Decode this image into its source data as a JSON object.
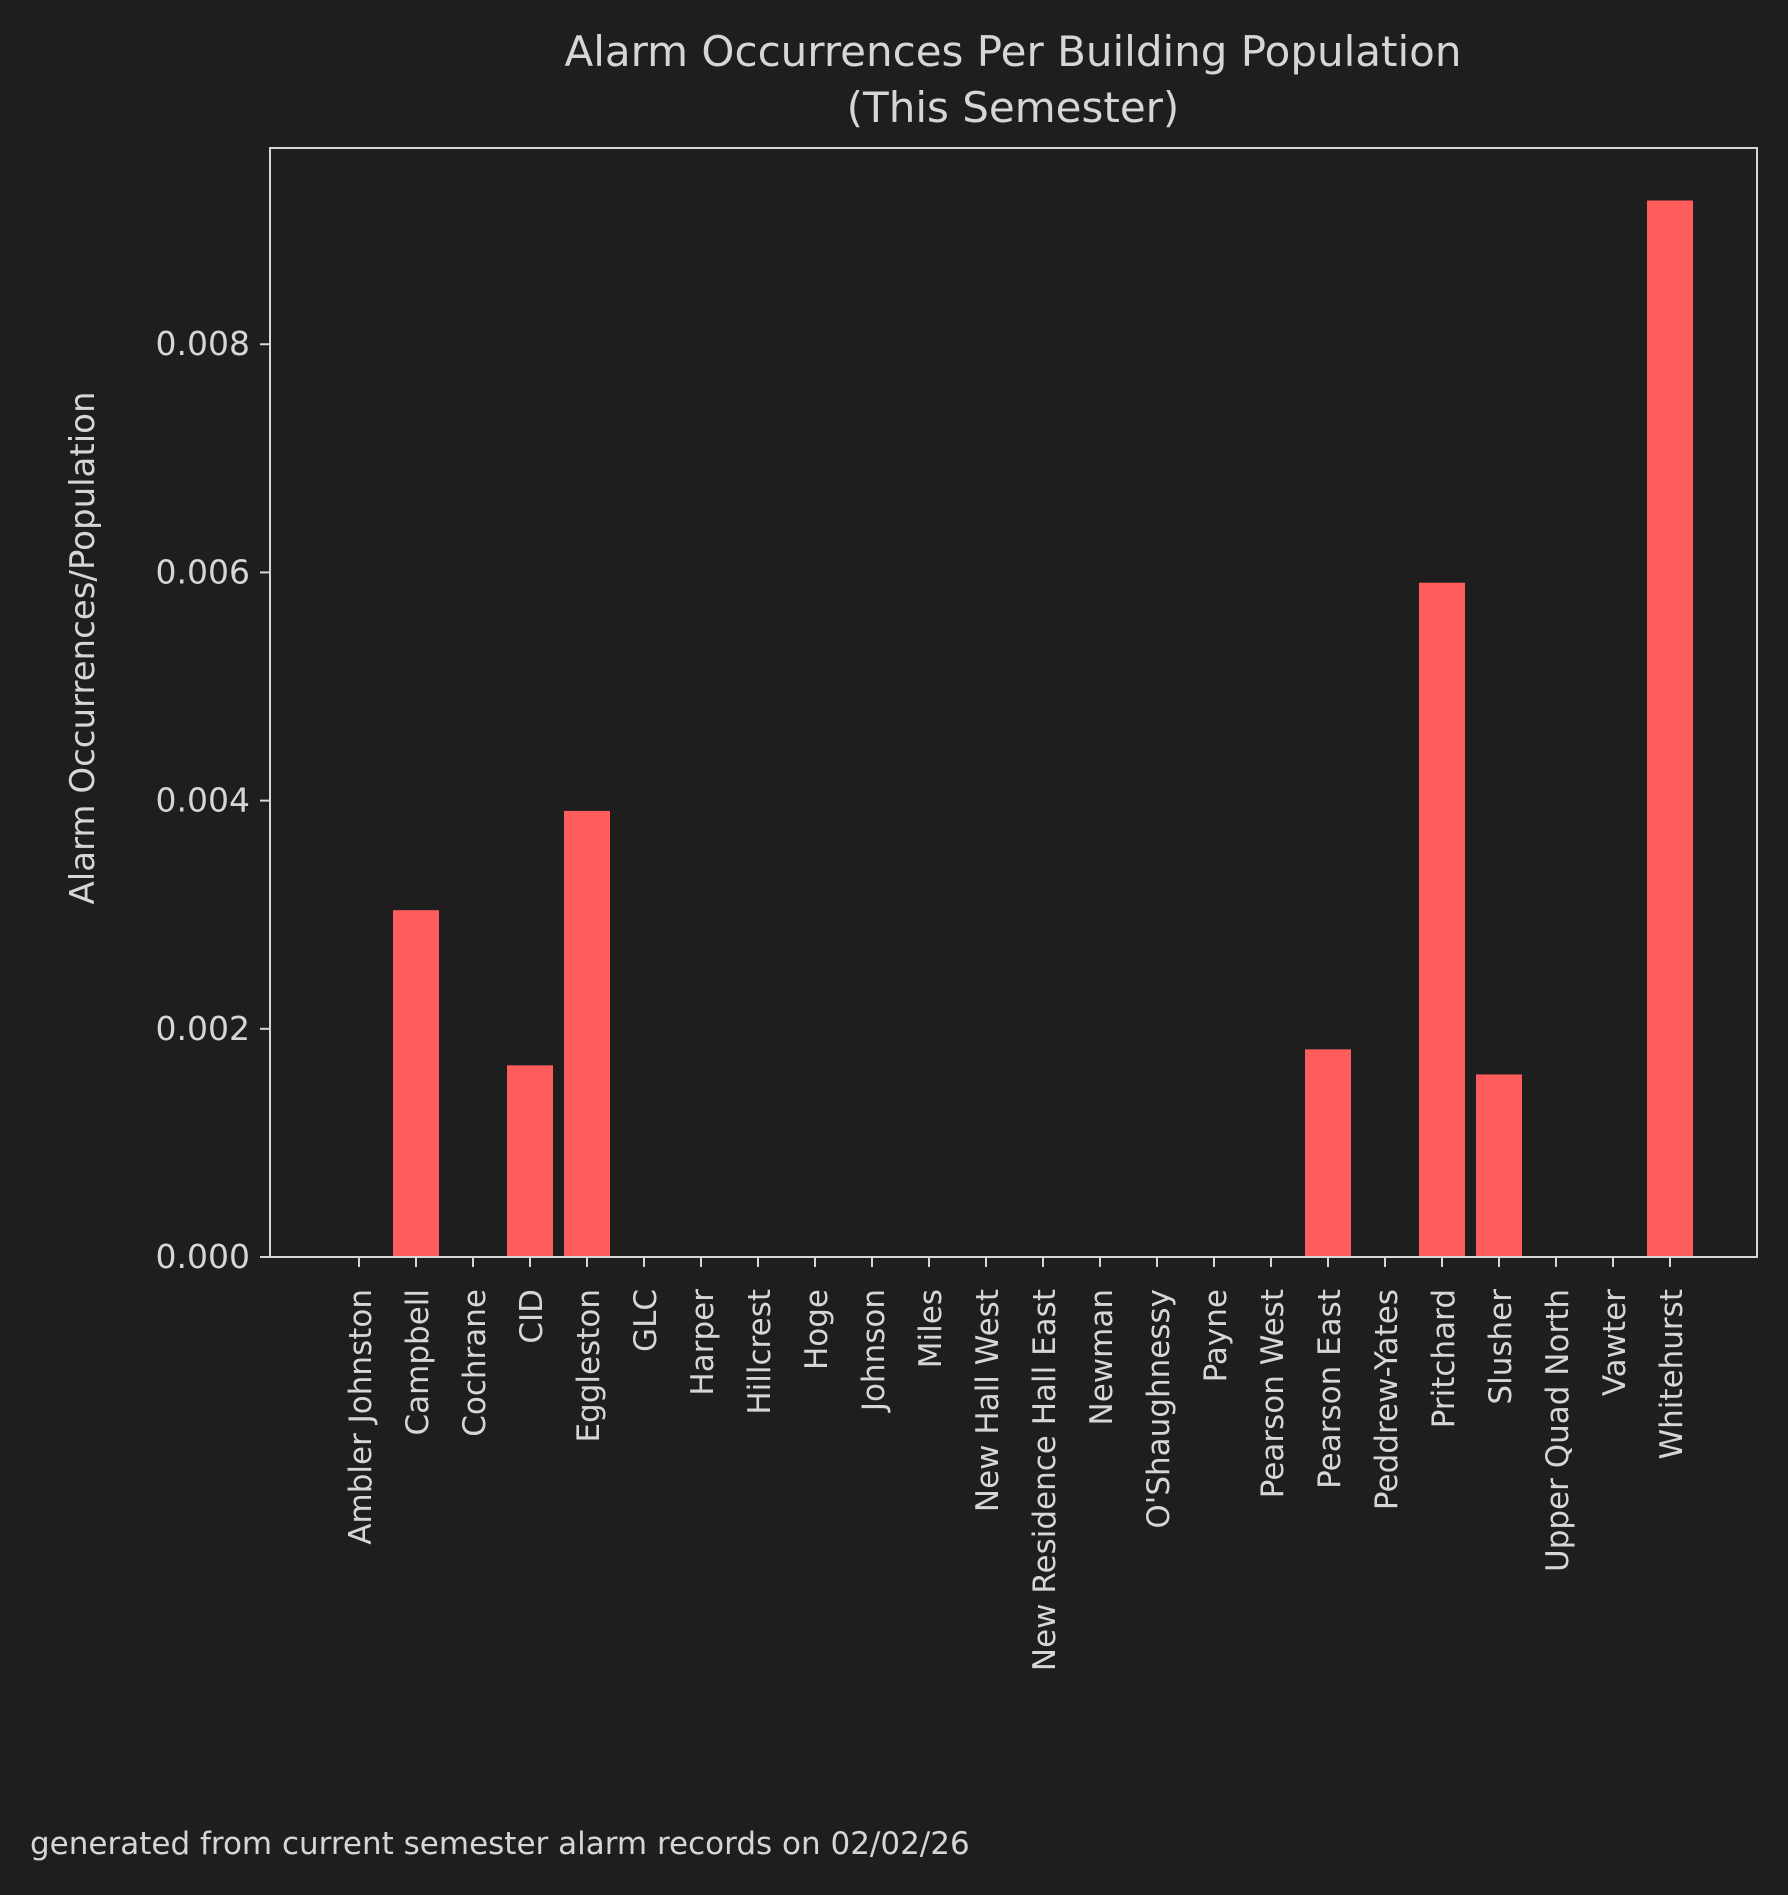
{
  "chart_data": {
    "type": "bar",
    "title": "Alarm Occurrences Per Building Population",
    "subtitle": "(This Semester)",
    "xlabel": "",
    "ylabel": "Alarm Occurrences/Population",
    "ylim": [
      0,
      0.00972
    ],
    "yticks": [
      0.0,
      0.002,
      0.004,
      0.006,
      0.008
    ],
    "ytick_labels": [
      "0.000",
      "0.002",
      "0.004",
      "0.006",
      "0.008"
    ],
    "grid": false,
    "categories": [
      "Ambler Johnston",
      "Campbell",
      "Cochrane",
      "CID",
      "Eggleston",
      "GLC",
      "Harper",
      "Hillcrest",
      "Hoge",
      "Johnson",
      "Miles",
      "New Hall West",
      "New Residence Hall East",
      "Newman",
      "O'Shaughnessy",
      "Payne",
      "Pearson West",
      "Pearson East",
      "Peddrew-Yates",
      "Pritchard",
      "Slusher",
      "Upper Quad North",
      "Vawter",
      "Whitehurst"
    ],
    "values": [
      0,
      0.00304,
      0,
      0.00168,
      0.00391,
      0,
      0,
      0,
      0,
      0,
      0,
      0,
      0,
      0,
      0,
      0,
      0,
      0.00182,
      0,
      0.00591,
      0.0016,
      0,
      0,
      0.00926
    ],
    "bar_color": "#ff5c5c",
    "background_color": "#1e1e1e",
    "text_color": "#d6d6d6"
  },
  "footnote": "generated from current semester alarm records on 02/02/26"
}
